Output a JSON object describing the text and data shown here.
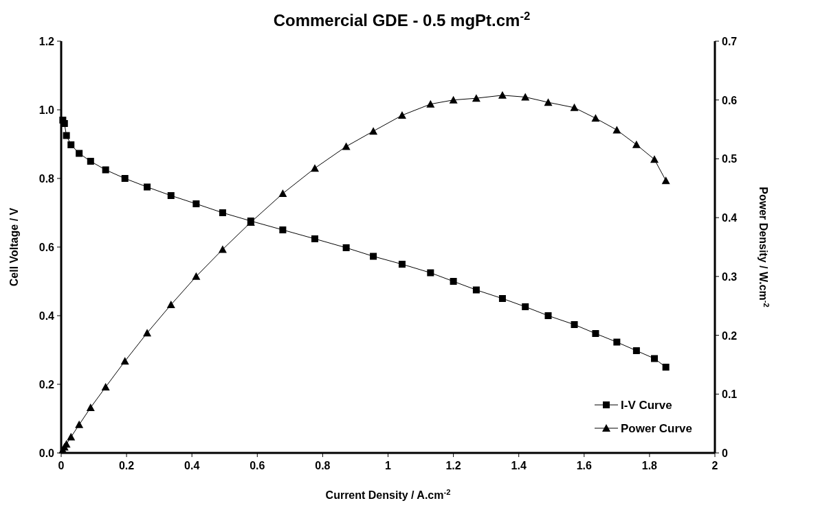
{
  "chart_data": {
    "type": "line",
    "title": "Commercial GDE - 0.5 mgPt.cm$^{-2}$",
    "xlabel": "Current Density / A.cm$^{-2}$",
    "ylabel": "Cell Voltage / V",
    "y2label": "Power Density / W.cm$^{-2}$",
    "x": [
      0.005,
      0.01,
      0.016,
      0.03,
      0.055,
      0.09,
      0.136,
      0.195,
      0.263,
      0.336,
      0.413,
      0.494,
      0.58,
      0.678,
      0.776,
      0.872,
      0.955,
      1.043,
      1.13,
      1.2,
      1.27,
      1.35,
      1.42,
      1.49,
      1.57,
      1.635,
      1.7,
      1.76,
      1.815,
      1.85
    ],
    "series": [
      {
        "name": "I-V Curve",
        "color": "#000000",
        "marker": "square",
        "values": [
          0.97,
          0.96,
          0.925,
          0.898,
          0.873,
          0.85,
          0.825,
          0.8,
          0.775,
          0.75,
          0.726,
          0.7,
          0.676,
          0.65,
          0.624,
          0.598,
          0.573,
          0.55,
          0.525,
          0.5,
          0.475,
          0.45,
          0.426,
          0.4,
          0.374,
          0.348,
          0.323,
          0.298,
          0.275,
          0.25
        ]
      },
      {
        "name": "Power Curve",
        "color": "#000000",
        "marker": "triangle",
        "axis": "y2",
        "values": [
          0.005,
          0.01,
          0.015,
          0.027,
          0.048,
          0.077,
          0.112,
          0.156,
          0.204,
          0.252,
          0.3,
          0.346,
          0.392,
          0.441,
          0.484,
          0.521,
          0.547,
          0.574,
          0.593,
          0.6,
          0.603,
          0.608,
          0.605,
          0.596,
          0.587,
          0.569,
          0.549,
          0.524,
          0.499,
          0.463
        ]
      }
    ],
    "xlim": [
      0,
      2
    ],
    "xticks": [
      0,
      0.2,
      0.4,
      0.6,
      0.8,
      1,
      1.2,
      1.4,
      1.6,
      1.8,
      2
    ],
    "ylim": [
      0,
      1.2
    ],
    "yticks": [
      {
        "value": 0,
        "label": "0.0"
      },
      0.2,
      0.4,
      0.6,
      0.8,
      {
        "value": 1,
        "label": "1.0"
      },
      {
        "value": 1.2,
        "label": "1.2"
      }
    ],
    "y2lim": [
      0,
      0.7
    ],
    "y2ticks": [
      0,
      0.1,
      0.2,
      0.3,
      0.4,
      0.5,
      0.6,
      0.7
    ],
    "grid": false,
    "legend": "bottom right",
    "line_style": "solid"
  }
}
